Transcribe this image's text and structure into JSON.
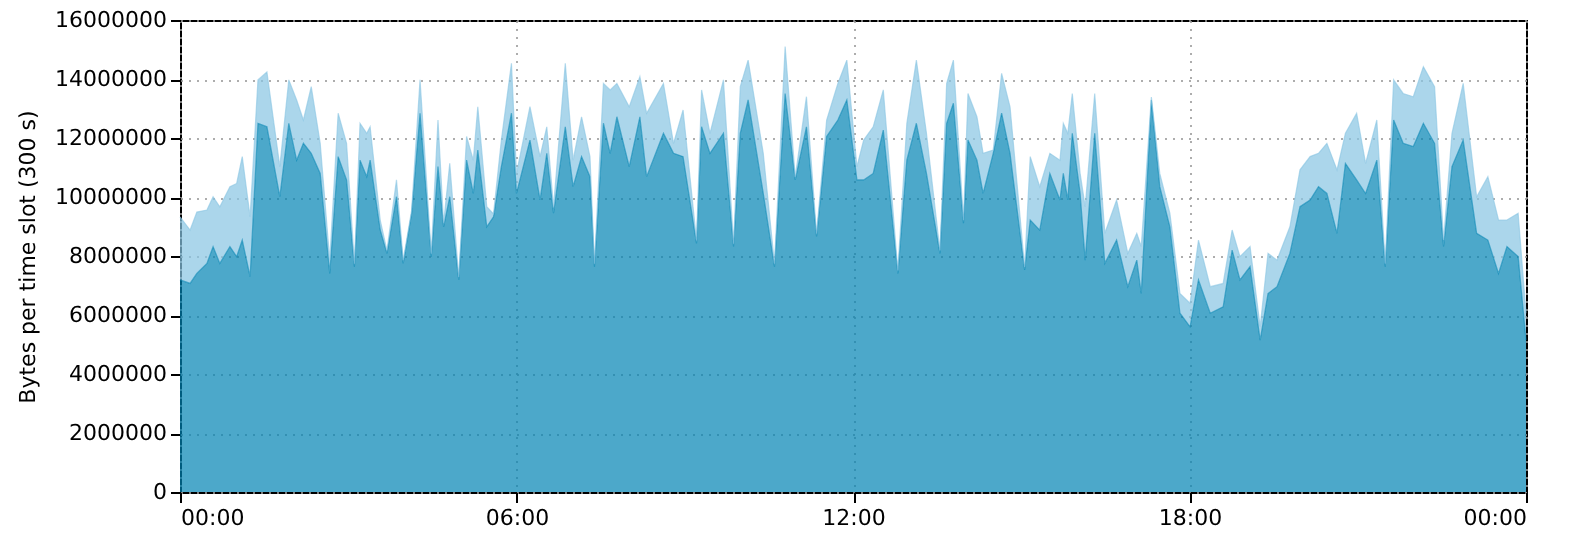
{
  "chart_data": {
    "type": "area",
    "stacked": true,
    "ylabel": "Bytes per time slot (300 s)",
    "x": [
      0,
      0.18,
      0.3,
      0.48,
      0.59,
      0.71,
      0.89,
      1.01,
      1.11,
      1.25,
      1.39,
      1.55,
      1.78,
      1.94,
      2.08,
      2.2,
      2.34,
      2.5,
      2.67,
      2.82,
      2.97,
      3.11,
      3.21,
      3.33,
      3.39,
      3.57,
      3.69,
      3.86,
      3.98,
      4.13,
      4.28,
      4.48,
      4.6,
      4.7,
      4.81,
      4.97,
      5.11,
      5.23,
      5.31,
      5.47,
      5.59,
      5.73,
      5.91,
      6,
      6.24,
      6.42,
      6.54,
      6.66,
      6.87,
      7.01,
      7.16,
      7.31,
      7.39,
      7.55,
      7.67,
      7.79,
      8.01,
      8.2,
      8.32,
      8.62,
      8.8,
      8.97,
      9.21,
      9.3,
      9.45,
      9.69,
      9.87,
      9.99,
      10.13,
      10.4,
      10.6,
      10.79,
      10.97,
      11.17,
      11.35,
      11.53,
      11.73,
      11.89,
      12.07,
      12.19,
      12.36,
      12.54,
      12.8,
      12.96,
      13.13,
      13.31,
      13.55,
      13.67,
      13.79,
      13.97,
      14.05,
      14.21,
      14.32,
      14.5,
      14.65,
      14.8,
      15.06,
      15.16,
      15.33,
      15.51,
      15.69,
      15.75,
      15.83,
      15.91,
      16.05,
      16.14,
      16.31,
      16.49,
      16.7,
      16.9,
      17.06,
      17.14,
      17.32,
      17.47,
      17.65,
      17.83,
      18.01,
      18.16,
      18.37,
      18.6,
      18.76,
      18.9,
      19.08,
      19.26,
      19.4,
      19.56,
      19.79,
      19.97,
      20.15,
      20.3,
      20.45,
      20.63,
      20.78,
      20.98,
      21.14,
      21.34,
      21.49,
      21.64,
      21.81,
      21.99,
      22.17,
      22.37,
      22.53,
      22.68,
      22.88,
      23.12,
      23.32,
      23.51,
      23.66,
      23.86,
      24
    ],
    "series": [
      {
        "color": "#0083b3",
        "values": [
          7190000,
          7070000,
          7410000,
          7750000,
          8320000,
          7750000,
          8320000,
          7980000,
          8540000,
          7300000,
          12500000,
          12380000,
          10010000,
          12500000,
          11250000,
          11820000,
          11480000,
          10800000,
          7410000,
          11370000,
          10580000,
          7640000,
          11250000,
          10690000,
          11250000,
          8880000,
          8090000,
          10010000,
          7750000,
          9450000,
          12840000,
          7980000,
          11030000,
          8990000,
          10010000,
          7190000,
          11250000,
          10120000,
          11590000,
          8990000,
          9330000,
          11030000,
          12840000,
          10120000,
          11930000,
          9900000,
          11480000,
          9450000,
          12380000,
          10350000,
          11370000,
          10690000,
          7640000,
          12500000,
          11480000,
          12720000,
          11030000,
          12720000,
          10690000,
          12160000,
          11480000,
          11370000,
          8430000,
          12380000,
          11480000,
          12160000,
          8320000,
          12160000,
          13290000,
          10120000,
          7640000,
          13510000,
          10580000,
          12380000,
          8660000,
          12050000,
          12610000,
          13290000,
          10580000,
          10580000,
          10800000,
          12270000,
          7410000,
          11250000,
          12500000,
          10800000,
          8090000,
          12500000,
          13180000,
          9110000,
          11930000,
          11250000,
          10120000,
          11480000,
          12840000,
          11480000,
          7530000,
          9220000,
          8880000,
          10800000,
          9900000,
          10800000,
          9900000,
          12160000,
          10120000,
          7860000,
          12160000,
          7750000,
          8540000,
          6960000,
          7860000,
          6730000,
          13290000,
          10350000,
          8990000,
          6060000,
          5600000,
          7190000,
          6060000,
          6280000,
          8200000,
          7190000,
          7640000,
          5150000,
          6730000,
          6960000,
          8090000,
          9670000,
          9900000,
          10350000,
          10120000,
          8770000,
          11140000,
          10580000,
          10120000,
          11250000,
          7640000,
          12610000,
          11820000,
          11710000,
          12500000,
          11820000,
          8320000,
          11030000,
          11930000,
          8770000,
          8540000,
          7410000,
          8320000,
          7980000,
          5150000
        ]
      },
      {
        "color": "#88c4e2",
        "values": [
          2140000,
          1810000,
          2080000,
          1810000,
          1690000,
          1920000,
          2030000,
          2480000,
          2830000,
          2030000,
          1470000,
          1860000,
          1020000,
          1470000,
          2040000,
          790000,
          2260000,
          1020000,
          450000,
          1470000,
          1240000,
          100000,
          1250000,
          1470000,
          1130000,
          340000,
          100000,
          570000,
          110000,
          100000,
          1130000,
          100000,
          1580000,
          120000,
          1130000,
          100000,
          800000,
          1130000,
          1470000,
          680000,
          100000,
          900000,
          1690000,
          680000,
          1130000,
          1470000,
          900000,
          220000,
          2150000,
          900000,
          1350000,
          680000,
          100000,
          1350000,
          2150000,
          1130000,
          2030000,
          1360000,
          2150000,
          1690000,
          340000,
          1580000,
          100000,
          1250000,
          680000,
          1810000,
          100000,
          1580000,
          1350000,
          1360000,
          100000,
          1590000,
          100000,
          1020000,
          100000,
          560000,
          1240000,
          1350000,
          450000,
          1350000,
          1580000,
          1360000,
          100000,
          1250000,
          2140000,
          1360000,
          100000,
          1350000,
          1460000,
          100000,
          1580000,
          1470000,
          1360000,
          110000,
          1350000,
          1580000,
          100000,
          2150000,
          1470000,
          680000,
          1350000,
          1700000,
          2260000,
          1350000,
          680000,
          1810000,
          1350000,
          1020000,
          1360000,
          1130000,
          910000,
          1590000,
          100000,
          450000,
          460000,
          670000,
          800000,
          1350000,
          900000,
          790000,
          680000,
          790000,
          680000,
          450000,
          1360000,
          900000,
          900000,
          1250000,
          1470000,
          1130000,
          1700000,
          2150000,
          1020000,
          2260000,
          1020000,
          1360000,
          100000,
          1360000,
          1690000,
          1690000,
          1920000,
          1920000,
          220000,
          1130000,
          1920000,
          1240000,
          2150000,
          1810000,
          900000,
          1470000,
          910000
        ]
      }
    ],
    "xlim": [
      0,
      24
    ],
    "xticks": [
      {
        "value": 0,
        "label": "00:00"
      },
      {
        "value": 6,
        "label": "06:00"
      },
      {
        "value": 12,
        "label": "12:00"
      },
      {
        "value": 18,
        "label": "18:00"
      },
      {
        "value": 24,
        "label": "00:00"
      }
    ],
    "ylim": [
      0,
      16000000
    ],
    "yticks": [
      0,
      2000000,
      4000000,
      6000000,
      8000000,
      10000000,
      12000000,
      14000000,
      16000000
    ],
    "grid": true
  }
}
